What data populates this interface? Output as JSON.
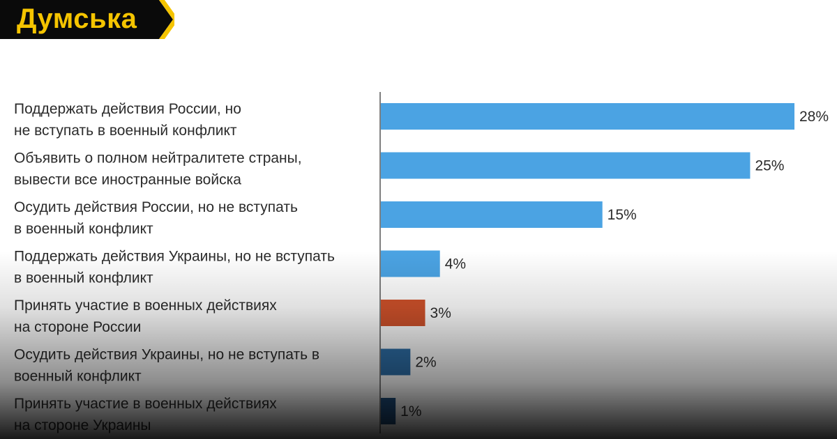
{
  "logo": {
    "text": "Думська",
    "text_color": "#f5c400",
    "background": "#0a0a0a",
    "accent": "#f5c400"
  },
  "chart_data": {
    "type": "bar",
    "orientation": "horizontal",
    "categories": [
      [
        "Поддержать действия России, но",
        "не вступать в военный конфликт"
      ],
      [
        "Объявить о полном нейтралитете страны,",
        "вывести все иностранные войска"
      ],
      [
        "Осудить действия России, но не вступать",
        "в военный конфликт"
      ],
      [
        "Поддержать действия Украины, но не вступать",
        "в военный конфликт"
      ],
      [
        "Принять участие в военных действиях",
        "на стороне России"
      ],
      [
        "Осудить действия Украины, но не вступать в",
        "военный конфликт"
      ],
      [
        "Принять участие в военных действиях",
        "на стороне Украины"
      ]
    ],
    "values": [
      28,
      25,
      15,
      4,
      3,
      2,
      1
    ],
    "value_labels": [
      "28%",
      "25%",
      "15%",
      "4%",
      "3%",
      "2%",
      "1%"
    ],
    "colors": [
      "#4ba3e3",
      "#4ba3e3",
      "#4ba3e3",
      "#4ba3e3",
      "#d0522b",
      "#2e6fa8",
      "#1f4f80"
    ],
    "unit": "%",
    "xlim": [
      0,
      28
    ],
    "grid": false,
    "legend": "none"
  }
}
